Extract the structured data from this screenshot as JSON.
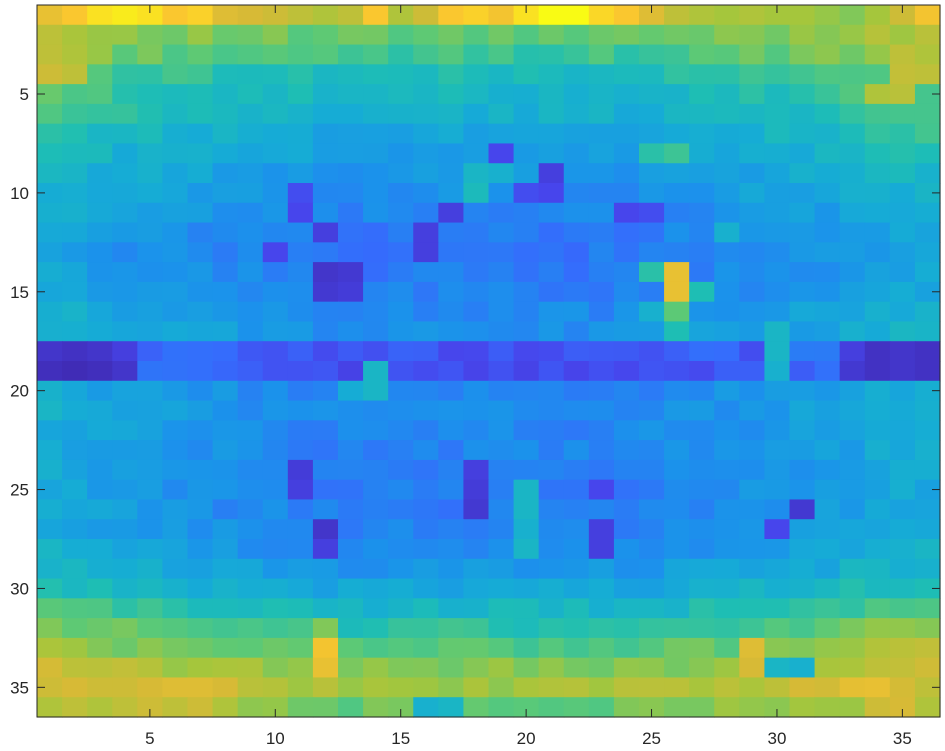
{
  "chart_data": {
    "type": "heatmap",
    "title": "",
    "xlabel": "",
    "ylabel": "",
    "colormap": "parula",
    "clim": [
      0,
      1
    ],
    "n_cols": 36,
    "n_rows": 36,
    "xlim": [
      0.5,
      36.5
    ],
    "ylim": [
      0.5,
      36.5
    ],
    "y_reversed": true,
    "x_ticks": [
      5,
      10,
      15,
      20,
      25,
      30,
      35
    ],
    "y_ticks": [
      5,
      10,
      15,
      20,
      25,
      30,
      35
    ],
    "x_tick_labels": [
      "5",
      "10",
      "15",
      "20",
      "25",
      "30",
      "35"
    ],
    "y_tick_labels": [
      "5",
      "10",
      "15",
      "20",
      "25",
      "30",
      "35"
    ],
    "grid": false,
    "legend": "none",
    "row_profile": [
      0.85,
      0.6,
      0.55,
      0.48,
      0.45,
      0.42,
      0.38,
      0.35,
      0.32,
      0.3,
      0.27,
      0.24,
      0.23,
      0.24,
      0.25,
      0.28,
      0.3,
      0.14,
      0.12,
      0.26,
      0.28,
      0.27,
      0.26,
      0.25,
      0.25,
      0.25,
      0.26,
      0.28,
      0.32,
      0.38,
      0.45,
      0.52,
      0.58,
      0.65,
      0.7,
      0.62
    ],
    "col_edge_boost": [
      0.14,
      0.12,
      0.1,
      0.08,
      0.07,
      0.06,
      0.05,
      0.04,
      0.03,
      0.02,
      0.01,
      0.0,
      0.0,
      0.0,
      0.0,
      0.0,
      0.0,
      0.0,
      0.0,
      0.0,
      0.0,
      0.0,
      0.0,
      0.0,
      0.01,
      0.02,
      0.03,
      0.04,
      0.05,
      0.06,
      0.07,
      0.08,
      0.1,
      0.12,
      0.13,
      0.14
    ],
    "overrides": [
      {
        "row": 1,
        "col": 1,
        "value": 0.85
      },
      {
        "row": 1,
        "col": 2,
        "value": 0.9
      },
      {
        "row": 1,
        "col": 3,
        "value": 0.95
      },
      {
        "row": 1,
        "col": 4,
        "value": 0.97
      },
      {
        "row": 1,
        "col": 5,
        "value": 0.95
      },
      {
        "row": 1,
        "col": 6,
        "value": 0.9
      },
      {
        "row": 1,
        "col": 7,
        "value": 0.92
      },
      {
        "row": 1,
        "col": 8,
        "value": 0.82
      },
      {
        "row": 1,
        "col": 9,
        "value": 0.8
      },
      {
        "row": 1,
        "col": 10,
        "value": 0.78
      },
      {
        "row": 1,
        "col": 11,
        "value": 0.75
      },
      {
        "row": 1,
        "col": 12,
        "value": 0.72
      },
      {
        "row": 1,
        "col": 13,
        "value": 0.75
      },
      {
        "row": 1,
        "col": 14,
        "value": 0.9
      },
      {
        "row": 1,
        "col": 15,
        "value": 0.72
      },
      {
        "row": 1,
        "col": 16,
        "value": 0.78
      },
      {
        "row": 1,
        "col": 17,
        "value": 0.9
      },
      {
        "row": 1,
        "col": 18,
        "value": 0.92
      },
      {
        "row": 1,
        "col": 19,
        "value": 0.88
      },
      {
        "row": 1,
        "col": 20,
        "value": 0.95
      },
      {
        "row": 1,
        "col": 21,
        "value": 1.0
      },
      {
        "row": 1,
        "col": 22,
        "value": 1.0
      },
      {
        "row": 1,
        "col": 23,
        "value": 0.93
      },
      {
        "row": 1,
        "col": 24,
        "value": 0.9
      },
      {
        "row": 1,
        "col": 25,
        "value": 0.82
      },
      {
        "row": 1,
        "col": 26,
        "value": 0.75
      },
      {
        "row": 1,
        "col": 27,
        "value": 0.72
      },
      {
        "row": 1,
        "col": 28,
        "value": 0.7
      },
      {
        "row": 1,
        "col": 29,
        "value": 0.72
      },
      {
        "row": 1,
        "col": 30,
        "value": 0.7
      },
      {
        "row": 1,
        "col": 31,
        "value": 0.7
      },
      {
        "row": 1,
        "col": 32,
        "value": 0.68
      },
      {
        "row": 1,
        "col": 33,
        "value": 0.65
      },
      {
        "row": 1,
        "col": 34,
        "value": 0.7
      },
      {
        "row": 1,
        "col": 35,
        "value": 0.78
      },
      {
        "row": 1,
        "col": 36,
        "value": 0.88
      },
      {
        "row": 3,
        "col": 1,
        "value": 0.75
      },
      {
        "row": 3,
        "col": 2,
        "value": 0.72
      },
      {
        "row": 3,
        "col": 35,
        "value": 0.75
      },
      {
        "row": 3,
        "col": 36,
        "value": 0.72
      },
      {
        "row": 4,
        "col": 1,
        "value": 0.78
      },
      {
        "row": 4,
        "col": 2,
        "value": 0.75
      },
      {
        "row": 4,
        "col": 35,
        "value": 0.76
      },
      {
        "row": 4,
        "col": 36,
        "value": 0.75
      },
      {
        "row": 5,
        "col": 34,
        "value": 0.72
      },
      {
        "row": 5,
        "col": 35,
        "value": 0.74
      },
      {
        "row": 8,
        "col": 25,
        "value": 0.52
      },
      {
        "row": 8,
        "col": 26,
        "value": 0.55
      },
      {
        "row": 8,
        "col": 19,
        "value": 0.1
      },
      {
        "row": 9,
        "col": 21,
        "value": 0.08
      },
      {
        "row": 9,
        "col": 18,
        "value": 0.45
      },
      {
        "row": 9,
        "col": 19,
        "value": 0.42
      },
      {
        "row": 10,
        "col": 20,
        "value": 0.12
      },
      {
        "row": 10,
        "col": 21,
        "value": 0.1
      },
      {
        "row": 10,
        "col": 18,
        "value": 0.48
      },
      {
        "row": 10,
        "col": 11,
        "value": 0.12
      },
      {
        "row": 11,
        "col": 24,
        "value": 0.1
      },
      {
        "row": 11,
        "col": 25,
        "value": 0.12
      },
      {
        "row": 11,
        "col": 17,
        "value": 0.08
      },
      {
        "row": 11,
        "col": 11,
        "value": 0.1
      },
      {
        "row": 12,
        "col": 12,
        "value": 0.08
      },
      {
        "row": 12,
        "col": 16,
        "value": 0.08
      },
      {
        "row": 12,
        "col": 28,
        "value": 0.42
      },
      {
        "row": 13,
        "col": 16,
        "value": 0.08
      },
      {
        "row": 13,
        "col": 10,
        "value": 0.1
      },
      {
        "row": 14,
        "col": 12,
        "value": 0.05
      },
      {
        "row": 14,
        "col": 13,
        "value": 0.06
      },
      {
        "row": 14,
        "col": 25,
        "value": 0.52
      },
      {
        "row": 14,
        "col": 26,
        "value": 0.85
      },
      {
        "row": 15,
        "col": 12,
        "value": 0.06
      },
      {
        "row": 15,
        "col": 13,
        "value": 0.07
      },
      {
        "row": 15,
        "col": 26,
        "value": 0.85
      },
      {
        "row": 15,
        "col": 27,
        "value": 0.5
      },
      {
        "row": 16,
        "col": 26,
        "value": 0.6
      },
      {
        "row": 16,
        "col": 25,
        "value": 0.42
      },
      {
        "row": 17,
        "col": 26,
        "value": 0.5
      },
      {
        "row": 17,
        "col": 30,
        "value": 0.45
      },
      {
        "row": 18,
        "col": 1,
        "value": 0.05
      },
      {
        "row": 18,
        "col": 2,
        "value": 0.04
      },
      {
        "row": 18,
        "col": 3,
        "value": 0.05
      },
      {
        "row": 18,
        "col": 4,
        "value": 0.08
      },
      {
        "row": 18,
        "col": 33,
        "value": 0.08
      },
      {
        "row": 18,
        "col": 34,
        "value": 0.04
      },
      {
        "row": 18,
        "col": 35,
        "value": 0.05
      },
      {
        "row": 18,
        "col": 36,
        "value": 0.04
      },
      {
        "row": 18,
        "col": 29,
        "value": 0.12
      },
      {
        "row": 18,
        "col": 30,
        "value": 0.45
      },
      {
        "row": 19,
        "col": 1,
        "value": 0.03
      },
      {
        "row": 19,
        "col": 2,
        "value": 0.02
      },
      {
        "row": 19,
        "col": 3,
        "value": 0.03
      },
      {
        "row": 19,
        "col": 4,
        "value": 0.05
      },
      {
        "row": 19,
        "col": 33,
        "value": 0.06
      },
      {
        "row": 19,
        "col": 34,
        "value": 0.04
      },
      {
        "row": 19,
        "col": 35,
        "value": 0.05
      },
      {
        "row": 19,
        "col": 36,
        "value": 0.04
      },
      {
        "row": 19,
        "col": 14,
        "value": 0.45
      },
      {
        "row": 19,
        "col": 30,
        "value": 0.42
      },
      {
        "row": 20,
        "col": 13,
        "value": 0.4
      },
      {
        "row": 20,
        "col": 14,
        "value": 0.45
      },
      {
        "row": 24,
        "col": 11,
        "value": 0.07
      },
      {
        "row": 24,
        "col": 18,
        "value": 0.08
      },
      {
        "row": 25,
        "col": 11,
        "value": 0.08
      },
      {
        "row": 25,
        "col": 18,
        "value": 0.07
      },
      {
        "row": 25,
        "col": 20,
        "value": 0.45
      },
      {
        "row": 25,
        "col": 23,
        "value": 0.1
      },
      {
        "row": 26,
        "col": 31,
        "value": 0.06
      },
      {
        "row": 26,
        "col": 18,
        "value": 0.06
      },
      {
        "row": 26,
        "col": 20,
        "value": 0.45
      },
      {
        "row": 27,
        "col": 12,
        "value": 0.05
      },
      {
        "row": 27,
        "col": 20,
        "value": 0.42
      },
      {
        "row": 27,
        "col": 23,
        "value": 0.08
      },
      {
        "row": 27,
        "col": 30,
        "value": 0.1
      },
      {
        "row": 28,
        "col": 12,
        "value": 0.08
      },
      {
        "row": 28,
        "col": 20,
        "value": 0.45
      },
      {
        "row": 28,
        "col": 23,
        "value": 0.08
      },
      {
        "row": 32,
        "col": 12,
        "value": 0.65
      },
      {
        "row": 32,
        "col": 29,
        "value": 0.55
      },
      {
        "row": 33,
        "col": 12,
        "value": 0.88
      },
      {
        "row": 33,
        "col": 29,
        "value": 0.82
      },
      {
        "row": 34,
        "col": 12,
        "value": 0.85
      },
      {
        "row": 34,
        "col": 29,
        "value": 0.8
      },
      {
        "row": 34,
        "col": 30,
        "value": 0.45
      },
      {
        "row": 34,
        "col": 31,
        "value": 0.42
      },
      {
        "row": 35,
        "col": 1,
        "value": 0.78
      },
      {
        "row": 35,
        "col": 2,
        "value": 0.8
      },
      {
        "row": 35,
        "col": 3,
        "value": 0.78
      },
      {
        "row": 35,
        "col": 4,
        "value": 0.78
      },
      {
        "row": 35,
        "col": 5,
        "value": 0.8
      },
      {
        "row": 35,
        "col": 6,
        "value": 0.82
      },
      {
        "row": 35,
        "col": 7,
        "value": 0.82
      },
      {
        "row": 35,
        "col": 8,
        "value": 0.8
      },
      {
        "row": 35,
        "col": 36,
        "value": 0.75
      },
      {
        "row": 36,
        "col": 1,
        "value": 0.72
      },
      {
        "row": 36,
        "col": 2,
        "value": 0.75
      },
      {
        "row": 36,
        "col": 3,
        "value": 0.72
      },
      {
        "row": 36,
        "col": 4,
        "value": 0.75
      },
      {
        "row": 36,
        "col": 5,
        "value": 0.78
      },
      {
        "row": 36,
        "col": 6,
        "value": 0.75
      },
      {
        "row": 36,
        "col": 7,
        "value": 0.78
      },
      {
        "row": 36,
        "col": 8,
        "value": 0.72
      },
      {
        "row": 36,
        "col": 16,
        "value": 0.42
      },
      {
        "row": 36,
        "col": 17,
        "value": 0.45
      },
      {
        "row": 36,
        "col": 34,
        "value": 0.78
      },
      {
        "row": 36,
        "col": 35,
        "value": 0.8
      },
      {
        "row": 36,
        "col": 36,
        "value": 0.72
      }
    ]
  }
}
